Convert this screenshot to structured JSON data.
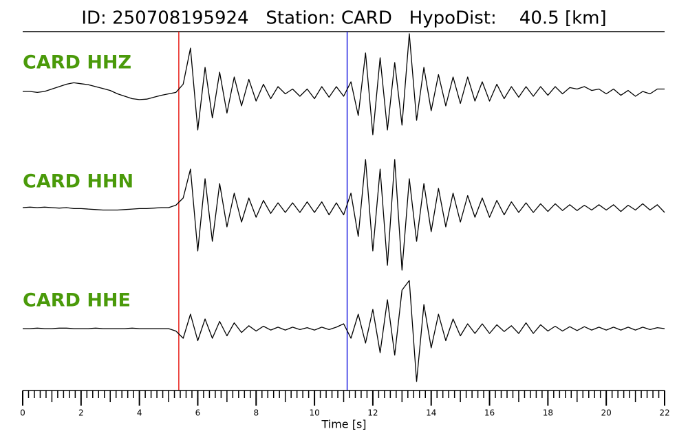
{
  "chart_data": {
    "type": "seismogram",
    "title": "ID: 250708195924   Station: CARD   HypoDist:    40.5 [km]",
    "xlabel": "Time [s]",
    "xlim": [
      0,
      22
    ],
    "xticks": [
      0,
      2,
      4,
      6,
      8,
      10,
      12,
      14,
      16,
      18,
      20,
      22
    ],
    "xminorticks": [
      0.2,
      0.4,
      0.6,
      0.8,
      1,
      1.2,
      1.4,
      1.6,
      1.8,
      2.2,
      2.4,
      2.6,
      2.8,
      3,
      3.2,
      3.4,
      3.6,
      3.8,
      4.2,
      4.4,
      4.6,
      4.8,
      5,
      5.2,
      5.4,
      5.6,
      5.8,
      6.2,
      6.4,
      6.6,
      6.8,
      7,
      7.2,
      7.4,
      7.6,
      7.8,
      8.2,
      8.4,
      8.6,
      8.8,
      9,
      9.2,
      9.4,
      9.6,
      9.8,
      10.2,
      10.4,
      10.6,
      10.8,
      11,
      11.2,
      11.4,
      11.6,
      11.8,
      12.2,
      12.4,
      12.6,
      12.8,
      13,
      13.2,
      13.4,
      13.6,
      13.8,
      14.2,
      14.4,
      14.6,
      14.8,
      15,
      15.2,
      15.4,
      15.6,
      15.8,
      16.2,
      16.4,
      16.6,
      16.8,
      17,
      17.2,
      17.4,
      17.6,
      17.8,
      18.2,
      18.4,
      18.6,
      18.8,
      19,
      19.2,
      19.4,
      19.6,
      19.8,
      20.2,
      20.4,
      20.6,
      20.8,
      21,
      21.2,
      21.4,
      21.6,
      21.8
    ],
    "markers": [
      {
        "x": 5.35,
        "color": "#e8201a"
      },
      {
        "x": 11.12,
        "color": "#1f1fe0"
      }
    ],
    "label_color": "#4a9a0a",
    "x": [
      0,
      0.25,
      0.5,
      0.75,
      1,
      1.25,
      1.5,
      1.75,
      2,
      2.25,
      2.5,
      2.75,
      3,
      3.25,
      3.5,
      3.75,
      4,
      4.25,
      4.5,
      4.75,
      5,
      5.25,
      5.5,
      5.75,
      6,
      6.25,
      6.5,
      6.75,
      7,
      7.25,
      7.5,
      7.75,
      8,
      8.25,
      8.5,
      8.75,
      9,
      9.25,
      9.5,
      9.75,
      10,
      10.25,
      10.5,
      10.75,
      11,
      11.25,
      11.5,
      11.75,
      12,
      12.25,
      12.5,
      12.75,
      13,
      13.25,
      13.5,
      13.75,
      14,
      14.25,
      14.5,
      14.75,
      15,
      15.25,
      15.5,
      15.75,
      16,
      16.25,
      16.5,
      16.75,
      17,
      17.25,
      17.5,
      17.75,
      18,
      18.25,
      18.5,
      18.75,
      19,
      19.25,
      19.5,
      19.75,
      20,
      20.25,
      20.5,
      20.75,
      21,
      21.25,
      21.5,
      21.75,
      22
    ],
    "series": [
      {
        "name": "CARD HHZ",
        "color": "#000000",
        "values": [
          0,
          0,
          -0.02,
          0,
          0.05,
          0.1,
          0.15,
          0.18,
          0.16,
          0.14,
          0.1,
          0.06,
          0.02,
          -0.05,
          -0.1,
          -0.15,
          -0.17,
          -0.16,
          -0.12,
          -0.08,
          -0.05,
          -0.02,
          0.15,
          0.9,
          -0.8,
          0.5,
          -0.55,
          0.4,
          -0.45,
          0.3,
          -0.3,
          0.25,
          -0.2,
          0.15,
          -0.15,
          0.1,
          -0.05,
          0.05,
          -0.1,
          0.05,
          -0.15,
          0.1,
          -0.12,
          0.1,
          -0.1,
          0.2,
          -0.5,
          0.8,
          -0.9,
          0.7,
          -0.8,
          0.6,
          -0.7,
          1.2,
          -0.6,
          0.5,
          -0.4,
          0.35,
          -0.3,
          0.3,
          -0.25,
          0.3,
          -0.2,
          0.2,
          -0.2,
          0.15,
          -0.15,
          0.1,
          -0.12,
          0.1,
          -0.1,
          0.1,
          -0.08,
          0.1,
          -0.05,
          0.08,
          0.05,
          0.1,
          0.02,
          0.05,
          -0.05,
          0.05,
          -0.08,
          0.02,
          -0.1,
          0,
          -0.05,
          0.05,
          0.05
        ]
      },
      {
        "name": "CARD HHN",
        "color": "#000000",
        "values": [
          0,
          0.01,
          0,
          0.01,
          0,
          -0.01,
          0,
          -0.02,
          -0.02,
          -0.03,
          -0.04,
          -0.05,
          -0.05,
          -0.05,
          -0.04,
          -0.03,
          -0.02,
          -0.02,
          -0.01,
          0,
          0,
          0.05,
          0.2,
          0.8,
          -0.9,
          0.6,
          -0.7,
          0.5,
          -0.4,
          0.3,
          -0.3,
          0.2,
          -0.2,
          0.15,
          -0.12,
          0.1,
          -0.1,
          0.1,
          -0.1,
          0.12,
          -0.1,
          0.12,
          -0.15,
          0.1,
          -0.15,
          0.3,
          -0.6,
          1.0,
          -0.9,
          0.8,
          -1.2,
          1.0,
          -1.3,
          0.6,
          -0.7,
          0.5,
          -0.5,
          0.4,
          -0.4,
          0.3,
          -0.3,
          0.25,
          -0.2,
          0.2,
          -0.2,
          0.15,
          -0.15,
          0.12,
          -0.1,
          0.1,
          -0.1,
          0.08,
          -0.08,
          0.08,
          -0.06,
          0.06,
          -0.06,
          0.05,
          -0.05,
          0.06,
          -0.05,
          0.06,
          -0.08,
          0.05,
          -0.05,
          0.08,
          -0.05,
          0.06,
          -0.1
        ]
      },
      {
        "name": "CARD HHE",
        "color": "#000000",
        "values": [
          0,
          0,
          0.01,
          0,
          0,
          0.01,
          0.01,
          0,
          0,
          0,
          0.01,
          0,
          0,
          0,
          0,
          0.01,
          0,
          0,
          0,
          0,
          0,
          -0.05,
          -0.2,
          0.3,
          -0.25,
          0.2,
          -0.2,
          0.15,
          -0.15,
          0.12,
          -0.08,
          0.06,
          -0.05,
          0.05,
          -0.03,
          0.03,
          -0.03,
          0.03,
          -0.02,
          0.02,
          -0.03,
          0.03,
          -0.02,
          0.03,
          0.1,
          -0.2,
          0.3,
          -0.3,
          0.4,
          -0.5,
          0.6,
          -0.55,
          0.8,
          1.0,
          -1.1,
          0.5,
          -0.4,
          0.3,
          -0.25,
          0.2,
          -0.15,
          0.1,
          -0.1,
          0.1,
          -0.1,
          0.08,
          -0.06,
          0.06,
          -0.1,
          0.12,
          -0.1,
          0.08,
          -0.05,
          0.05,
          -0.05,
          0.04,
          -0.04,
          0.04,
          -0.03,
          0.03,
          -0.03,
          0.03,
          -0.03,
          0.03,
          -0.03,
          0.03,
          -0.02,
          0.02,
          0
        ]
      }
    ]
  }
}
